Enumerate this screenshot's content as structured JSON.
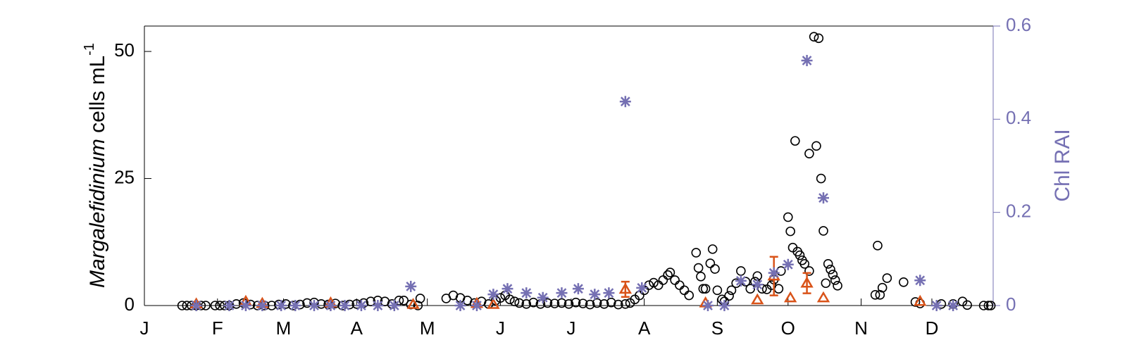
{
  "chart_data": {
    "type": "scatter",
    "ylabel": {
      "species": "Margalefidinium",
      "unit": " cells mL",
      "exponent": "-1"
    },
    "y2label": "Chl RAI",
    "xlim": [
      0,
      360
    ],
    "xticks": [
      {
        "value": 0,
        "label": "J"
      },
      {
        "value": 31,
        "label": "F"
      },
      {
        "value": 59,
        "label": "M"
      },
      {
        "value": 90,
        "label": "A"
      },
      {
        "value": 120,
        "label": "M"
      },
      {
        "value": 151,
        "label": "J"
      },
      {
        "value": 181,
        "label": "J"
      },
      {
        "value": 212,
        "label": "A"
      },
      {
        "value": 243,
        "label": "S"
      },
      {
        "value": 273,
        "label": "O"
      },
      {
        "value": 304,
        "label": "N"
      },
      {
        "value": 334,
        "label": "D"
      }
    ],
    "ylim": [
      0,
      55
    ],
    "yticks": [
      0,
      25,
      50
    ],
    "y2lim": [
      0,
      0.6
    ],
    "y2ticks": [
      0,
      0.2,
      0.4,
      0.6
    ],
    "series": [
      {
        "marker": "circle",
        "color": "#000000",
        "x": [
          16,
          18,
          20,
          22,
          24,
          26,
          30,
          32,
          34,
          36,
          39,
          42,
          45,
          48,
          51,
          54,
          57,
          60,
          63,
          66,
          69,
          72,
          75,
          78,
          81,
          84,
          87,
          90,
          93,
          96,
          99,
          102,
          105,
          108,
          110,
          113,
          116,
          117,
          128,
          131,
          134,
          137,
          140,
          143,
          146,
          149,
          151,
          153,
          155,
          157,
          159,
          162,
          165,
          168,
          171,
          174,
          177,
          180,
          183,
          186,
          189,
          192,
          195,
          198,
          201,
          204,
          206,
          208,
          210,
          212,
          214,
          216,
          218,
          220,
          222,
          223,
          225,
          227,
          229,
          231,
          234,
          235,
          236,
          237,
          238,
          240,
          241,
          242,
          243,
          245,
          246,
          248,
          249,
          251,
          253,
          255,
          257,
          259,
          260,
          262,
          264,
          266,
          267,
          269,
          270,
          273,
          274,
          275,
          276,
          277,
          278,
          279,
          280,
          282,
          282,
          284,
          285,
          286,
          287,
          288,
          289,
          290,
          291,
          292,
          293,
          294,
          310,
          311,
          312,
          313,
          315,
          322,
          327,
          329,
          338,
          343,
          347,
          349,
          356,
          358,
          359
        ],
        "values": [
          0,
          0,
          0,
          0,
          0,
          0,
          0,
          0,
          0,
          0,
          0.3,
          0.5,
          0.2,
          0,
          0,
          0,
          0.2,
          0.3,
          0,
          0.2,
          0.5,
          0.6,
          0.3,
          0.2,
          0.4,
          0,
          0.2,
          0.3,
          0.5,
          0.8,
          1.0,
          0.8,
          0.3,
          1.0,
          1.0,
          0.2,
          0,
          1.4,
          1.4,
          2,
          1.5,
          1,
          0.5,
          0.8,
          0.3,
          1,
          1.5,
          2,
          1.2,
          0.8,
          0.5,
          0.3,
          0.6,
          0.3,
          0.5,
          0.4,
          0.5,
          0.3,
          0.6,
          0.4,
          0.2,
          0.5,
          0.3,
          0.6,
          0.2,
          0.3,
          0.5,
          1.2,
          2,
          3,
          4,
          4.5,
          4,
          5,
          6,
          6.5,
          5,
          4,
          3,
          2,
          10.4,
          7.4,
          5.7,
          3.3,
          3.3,
          8.3,
          11.1,
          7.2,
          3,
          1.2,
          0.8,
          1.9,
          3,
          4.4,
          6.8,
          4.7,
          3.3,
          4.7,
          5.8,
          3.3,
          3.2,
          4,
          5.1,
          3.3,
          6.8,
          17.4,
          14.6,
          11.4,
          32.4,
          10.6,
          9.9,
          8.9,
          8.2,
          6.8,
          29.9,
          52.9,
          31.4,
          52.6,
          25,
          14.7,
          4.4,
          8.2,
          7.1,
          6.1,
          5,
          3.9,
          2.1,
          11.8,
          2.1,
          3.5,
          5.4,
          4.6,
          0.7,
          0.4,
          0.3,
          0.3,
          0.8,
          0.1,
          0,
          0,
          0
        ]
      },
      {
        "marker": "triangle",
        "color": "#d95319",
        "x": [
          22,
          43,
          50,
          79,
          114,
          141,
          148,
          204,
          238,
          260,
          267,
          274,
          281,
          288,
          329
        ],
        "values": [
          0.3,
          0.8,
          0.4,
          0.5,
          0.2,
          0.4,
          0.2,
          3.2,
          0.5,
          1.1,
          5.8,
          1.5,
          4.4,
          1.5,
          0.8
        ],
        "errors": [
          null,
          null,
          null,
          null,
          null,
          null,
          null,
          1.5,
          null,
          null,
          3.8,
          null,
          2,
          null,
          null
        ]
      },
      {
        "marker": "asterisk",
        "color": "#7570b3",
        "axis": "y2",
        "x": [
          22,
          36,
          43,
          50,
          58,
          64,
          72,
          79,
          85,
          92,
          99,
          106,
          113,
          134,
          141,
          148,
          154,
          162,
          169,
          177,
          184,
          191,
          197,
          204,
          211,
          239,
          246,
          253,
          260,
          267,
          273,
          281,
          288,
          329,
          336,
          343
        ],
        "values": [
          0,
          0,
          0,
          0,
          0,
          0,
          0,
          0,
          0,
          0,
          0,
          0,
          0.041,
          0,
          0,
          0.024,
          0.036,
          0.027,
          0.017,
          0.027,
          0.036,
          0.024,
          0.027,
          0.438,
          0.038,
          0,
          0,
          0.053,
          0.045,
          0.07,
          0.088,
          0.526,
          0.231,
          0.054,
          0,
          0
        ]
      }
    ]
  }
}
